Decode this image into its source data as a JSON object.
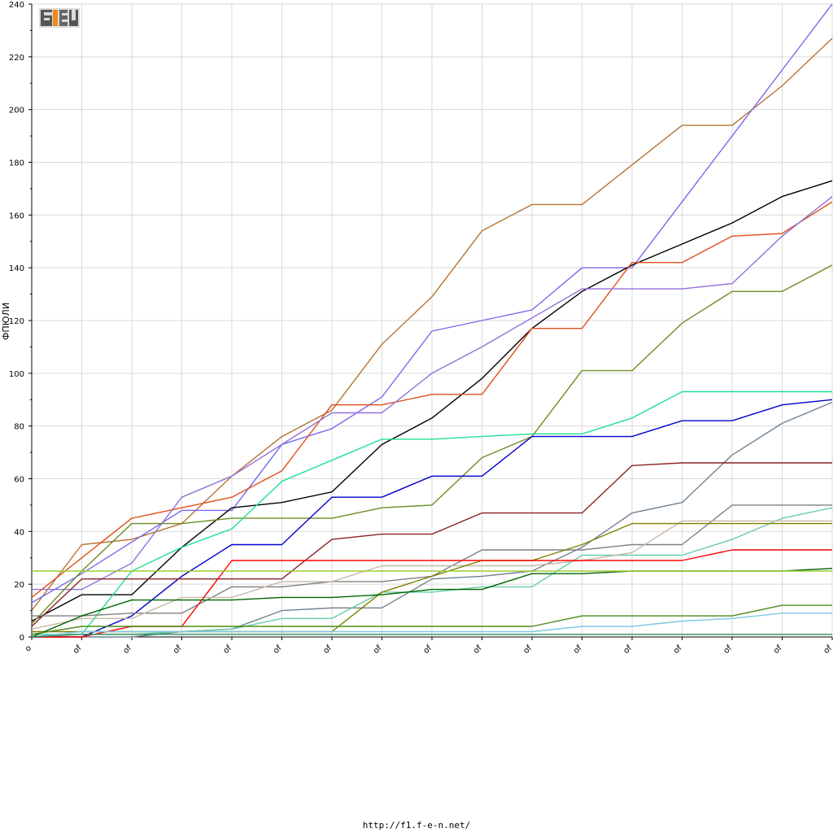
{
  "footer_url": "http://f1.f-e-n.net/",
  "logo_text": "F1EN",
  "chart_data": {
    "type": "line",
    "ylabel": "ФПЮЛИ",
    "xlabel": "",
    "ylim": [
      0,
      240
    ],
    "yticks": [
      0,
      20,
      40,
      60,
      80,
      100,
      120,
      140,
      160,
      180,
      200,
      220,
      240
    ],
    "categories": [
      "o",
      "of",
      "of",
      "of",
      "of",
      "of",
      "of",
      "of",
      "of",
      "of",
      "of",
      "of",
      "of",
      "of",
      "of",
      "of",
      "of"
    ],
    "grid": true,
    "legend": "none",
    "series": [
      {
        "color": "#b87333",
        "values": [
          10,
          35,
          37,
          43,
          61,
          76,
          86,
          111,
          129,
          154,
          164,
          164,
          179,
          194,
          194,
          209,
          227
        ]
      },
      {
        "color": "#7b68ee",
        "values": [
          13,
          24,
          36,
          48,
          48,
          73,
          79,
          91,
          116,
          120,
          124,
          140,
          140,
          165,
          190,
          215,
          240
        ]
      },
      {
        "color": "#000000",
        "values": [
          6,
          16,
          16,
          34,
          49,
          51,
          55,
          73,
          83,
          98,
          117,
          131,
          141,
          149,
          157,
          167,
          173
        ]
      },
      {
        "color": "#e0501a",
        "values": [
          15,
          30,
          45,
          49,
          53,
          63,
          88,
          88,
          92,
          92,
          117,
          117,
          142,
          142,
          152,
          153,
          165
        ]
      },
      {
        "color": "#9370db",
        "values": [
          18,
          18,
          28,
          53,
          61,
          73,
          85,
          85,
          100,
          110,
          121,
          132,
          132,
          132,
          134,
          152,
          167
        ]
      },
      {
        "color": "#6b8e23",
        "values": [
          5,
          25,
          43,
          43,
          45,
          45,
          45,
          49,
          50,
          68,
          76,
          101,
          101,
          119,
          131,
          131,
          141
        ]
      },
      {
        "color": "#1ee090",
        "values": [
          1,
          1,
          25,
          34,
          41,
          59,
          67,
          75,
          75,
          76,
          77,
          77,
          83,
          93,
          93,
          93,
          93
        ]
      },
      {
        "color": "#0000cd",
        "values": [
          0,
          0,
          8,
          23,
          35,
          35,
          53,
          53,
          61,
          61,
          76,
          76,
          76,
          82,
          82,
          88,
          90
        ]
      },
      {
        "color": "#708090",
        "values": [
          0,
          0,
          0,
          2,
          3,
          10,
          11,
          11,
          22,
          23,
          25,
          34,
          47,
          51,
          69,
          81,
          89
        ]
      },
      {
        "color": "#8b2323",
        "values": [
          4,
          22,
          22,
          22,
          22,
          22,
          37,
          39,
          39,
          47,
          47,
          47,
          65,
          66,
          66,
          66,
          66
        ]
      },
      {
        "color": "#808080",
        "values": [
          8,
          8,
          9,
          9,
          19,
          19,
          21,
          21,
          23,
          33,
          33,
          33,
          35,
          35,
          50,
          50,
          50
        ]
      },
      {
        "color": "#66cdaa",
        "values": [
          1,
          1,
          1,
          2,
          3,
          7,
          7,
          17,
          17,
          19,
          19,
          31,
          31,
          31,
          37,
          45,
          49
        ]
      },
      {
        "color": "#c8b8a8",
        "values": [
          3,
          7,
          7,
          15,
          15,
          21,
          21,
          27,
          27,
          27,
          27,
          29,
          32,
          44,
          44,
          44,
          44
        ]
      },
      {
        "color": "#808000",
        "values": [
          2,
          2,
          2,
          2,
          2,
          2,
          2,
          17,
          23,
          29,
          29,
          35,
          43,
          43,
          43,
          43,
          43
        ]
      },
      {
        "color": "#ff0000",
        "values": [
          0,
          0,
          4,
          4,
          29,
          29,
          29,
          29,
          29,
          29,
          29,
          29,
          29,
          29,
          33,
          33,
          33
        ]
      },
      {
        "color": "#006400",
        "values": [
          0,
          8,
          14,
          14,
          14,
          15,
          15,
          16,
          18,
          18,
          24,
          24,
          25,
          25,
          25,
          25,
          26
        ]
      },
      {
        "color": "#9acd32",
        "values": [
          25,
          25,
          25,
          25,
          25,
          25,
          25,
          25,
          25,
          25,
          25,
          25,
          25,
          25,
          25,
          25,
          25
        ]
      },
      {
        "color": "#4b8b1a",
        "values": [
          1,
          4,
          4,
          4,
          4,
          4,
          4,
          4,
          4,
          4,
          4,
          8,
          8,
          8,
          8,
          12,
          12
        ]
      },
      {
        "color": "#7ec8e3",
        "values": [
          0,
          2,
          2,
          2,
          2,
          2,
          2,
          2,
          2,
          2,
          2,
          4,
          4,
          6,
          7,
          9,
          9
        ]
      },
      {
        "color": "#2e8b57",
        "values": [
          0,
          1,
          1,
          1,
          1,
          1,
          1,
          1,
          1,
          1,
          1,
          1,
          1,
          1,
          1,
          1,
          1
        ]
      }
    ]
  }
}
